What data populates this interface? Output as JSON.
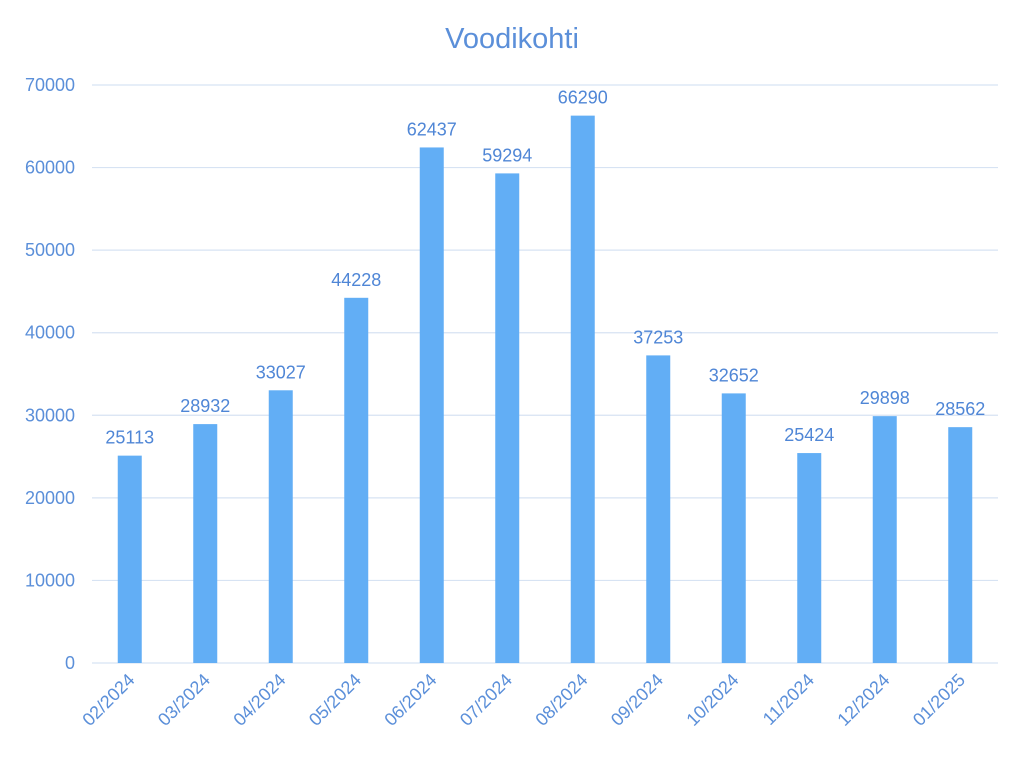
{
  "chart_data": {
    "type": "bar",
    "title": "Voodikohti",
    "xlabel": "",
    "ylabel": "",
    "categories": [
      "02/2024",
      "03/2024",
      "04/2024",
      "05/2024",
      "06/2024",
      "07/2024",
      "08/2024",
      "09/2024",
      "10/2024",
      "11/2024",
      "12/2024",
      "01/2025"
    ],
    "values": [
      25113,
      28932,
      33027,
      44228,
      62437,
      59294,
      66290,
      37253,
      32652,
      25424,
      29898,
      28562
    ],
    "ylim": [
      0,
      70000
    ],
    "yticks": [
      0,
      10000,
      20000,
      30000,
      40000,
      50000,
      60000,
      70000
    ],
    "grid": true,
    "legend": "none",
    "colors": {
      "bar": "#62aef5",
      "text": "#5b8fd9",
      "grid": "#d7e3f3"
    }
  }
}
